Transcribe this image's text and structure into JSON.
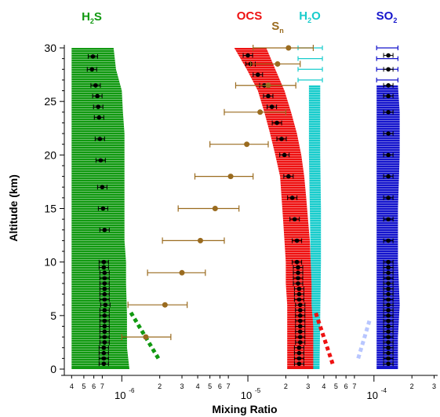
{
  "chart_data": {
    "type": "scatter",
    "title": "",
    "xlabel": "Mixing Ratio",
    "ylabel": "Altitude (km)",
    "x_scale": "log",
    "xlim": [
      3.5e-07,
      0.00032
    ],
    "ylim": [
      0,
      30
    ],
    "y_ticks": [
      0,
      5,
      10,
      15,
      20,
      25,
      30
    ],
    "x_major_ticks": [
      {
        "value": 1e-06,
        "label": "10",
        "exp": "-6"
      },
      {
        "value": 1e-05,
        "label": "10",
        "exp": "-5"
      },
      {
        "value": 0.0001,
        "label": "10",
        "exp": "-4"
      }
    ],
    "x_minor_ticks": [
      {
        "value": 4e-07,
        "label": "4"
      },
      {
        "value": 5e-07,
        "label": "5"
      },
      {
        "value": 6e-07,
        "label": "6"
      },
      {
        "value": 7e-07,
        "label": "7"
      },
      {
        "value": 2e-06,
        "label": "2"
      },
      {
        "value": 3e-06,
        "label": "3"
      },
      {
        "value": 4e-06,
        "label": "4"
      },
      {
        "value": 5e-06,
        "label": "5"
      },
      {
        "value": 6e-06,
        "label": "6"
      },
      {
        "value": 7e-06,
        "label": "7"
      },
      {
        "value": 2e-05,
        "label": "2"
      },
      {
        "value": 3e-05,
        "label": "3"
      },
      {
        "value": 4e-05,
        "label": "4"
      },
      {
        "value": 5e-05,
        "label": "5"
      },
      {
        "value": 6e-05,
        "label": "6"
      },
      {
        "value": 7e-05,
        "label": "7"
      },
      {
        "value": 0.0002,
        "label": "2"
      },
      {
        "value": 0.0003,
        "label": "3"
      }
    ],
    "series": [
      {
        "name": "H",
        "name_sub": "2",
        "name_tail": "S",
        "color": "#119911",
        "band": [
          [
            0,
            4e-07,
            1.15e-06
          ],
          [
            2,
            4e-07,
            1.1e-06
          ],
          [
            5,
            4e-07,
            1.1e-06
          ],
          [
            8,
            4e-07,
            1.08e-06
          ],
          [
            10,
            4e-07,
            1.08e-06
          ],
          [
            12,
            4e-07,
            1.05e-06
          ],
          [
            15,
            4e-07,
            1.05e-06
          ],
          [
            18,
            4e-07,
            1.05e-06
          ],
          [
            20,
            4e-07,
            1.05e-06
          ],
          [
            22,
            4e-07,
            1.05e-06
          ],
          [
            24,
            4e-07,
            1.02e-06
          ],
          [
            26,
            4e-07,
            1e-06
          ],
          [
            28,
            4e-07,
            9e-07
          ],
          [
            30,
            4e-07,
            8.6e-07
          ]
        ],
        "points": [
          [
            0.5,
            7.2e-07
          ],
          [
            1,
            7.2e-07
          ],
          [
            1.5,
            7.2e-07
          ],
          [
            2,
            7.2e-07
          ],
          [
            2.5,
            7.3e-07
          ],
          [
            3,
            7.3e-07
          ],
          [
            3.5,
            7.3e-07
          ],
          [
            4,
            7.3e-07
          ],
          [
            4.5,
            7.3e-07
          ],
          [
            5,
            7.3e-07
          ],
          [
            5.5,
            7.3e-07
          ],
          [
            6,
            7.4e-07
          ],
          [
            6.5,
            7.3e-07
          ],
          [
            7,
            7.3e-07
          ],
          [
            7.5,
            7.3e-07
          ],
          [
            8,
            7.3e-07
          ],
          [
            8.5,
            7.3e-07
          ],
          [
            9,
            7.3e-07
          ],
          [
            9.5,
            7.2e-07
          ],
          [
            10,
            7.2e-07
          ],
          [
            13,
            7.3e-07
          ],
          [
            15,
            7.1e-07
          ],
          [
            17,
            7e-07
          ],
          [
            19.5,
            6.8e-07
          ],
          [
            21.5,
            6.7e-07
          ],
          [
            23.5,
            6.6e-07
          ],
          [
            24.5,
            6.5e-07
          ],
          [
            25.5,
            6.4e-07
          ],
          [
            26.5,
            6.2e-07
          ],
          [
            28,
            5.8e-07
          ],
          [
            29.2,
            5.9e-07
          ]
        ],
        "extrap": [
          [
            1,
            1.95e-06
          ],
          [
            5.5,
            1.15e-06
          ]
        ]
      },
      {
        "name": "OCS",
        "name_sub": "",
        "name_tail": "",
        "color": "#ee1111",
        "band": [
          [
            0,
            2.05e-05,
            3.3e-05
          ],
          [
            4,
            2.05e-05,
            3.3e-05
          ],
          [
            6,
            2.05e-05,
            3.2e-05
          ],
          [
            8,
            2e-05,
            3.2e-05
          ],
          [
            10,
            2e-05,
            3.15e-05
          ],
          [
            12,
            1.95e-05,
            3.1e-05
          ],
          [
            14,
            1.9e-05,
            3e-05
          ],
          [
            16,
            1.85e-05,
            2.9e-05
          ],
          [
            18,
            1.8e-05,
            2.8e-05
          ],
          [
            20,
            1.65e-05,
            2.65e-05
          ],
          [
            22,
            1.5e-05,
            2.45e-05
          ],
          [
            24,
            1.35e-05,
            2.2e-05
          ],
          [
            26,
            1.2e-05,
            1.95e-05
          ],
          [
            28,
            9.8e-06,
            1.65e-05
          ],
          [
            30,
            7.8e-06,
            1.4e-05
          ]
        ],
        "points": [
          [
            0.5,
            2.55e-05
          ],
          [
            1,
            2.55e-05
          ],
          [
            1.5,
            2.55e-05
          ],
          [
            2,
            2.55e-05
          ],
          [
            2.5,
            2.6e-05
          ],
          [
            3,
            2.6e-05
          ],
          [
            3.5,
            2.6e-05
          ],
          [
            4,
            2.6e-05
          ],
          [
            4.5,
            2.6e-05
          ],
          [
            5,
            2.6e-05
          ],
          [
            5.5,
            2.6e-05
          ],
          [
            6,
            2.6e-05
          ],
          [
            6.5,
            2.55e-05
          ],
          [
            7,
            2.55e-05
          ],
          [
            7.5,
            2.55e-05
          ],
          [
            8,
            2.5e-05
          ],
          [
            8.5,
            2.5e-05
          ],
          [
            9,
            2.5e-05
          ],
          [
            9.5,
            2.5e-05
          ],
          [
            10,
            2.45e-05
          ],
          [
            12,
            2.45e-05
          ],
          [
            14,
            2.35e-05
          ],
          [
            16,
            2.25e-05
          ],
          [
            18,
            2.1e-05
          ],
          [
            20,
            1.95e-05
          ],
          [
            21.5,
            1.85e-05
          ],
          [
            23,
            1.7e-05
          ],
          [
            24.5,
            1.55e-05
          ],
          [
            25.5,
            1.45e-05
          ],
          [
            26.5,
            1.35e-05
          ],
          [
            27.5,
            1.2e-05
          ],
          [
            28.5,
            1.05e-05
          ],
          [
            29.3,
            1e-05
          ]
        ],
        "extrap": [
          [
            0.5,
            4.7e-05
          ],
          [
            5.5,
            3.4e-05
          ]
        ]
      },
      {
        "name": "H",
        "name_sub": "2",
        "name_tail": "O",
        "color": "#19cccc",
        "band": [
          [
            0,
            3.2e-05,
            3.7e-05
          ],
          [
            5,
            3.2e-05,
            3.75e-05
          ],
          [
            10,
            3.15e-05,
            3.8e-05
          ],
          [
            15,
            3.1e-05,
            3.8e-05
          ],
          [
            20,
            3.05e-05,
            3.75e-05
          ],
          [
            25,
            3.05e-05,
            3.75e-05
          ],
          [
            26.5,
            3.05e-05,
            3.75e-05
          ]
        ],
        "errorbars": [
          [
            27,
            2.5e-05,
            3.9e-05
          ],
          [
            28,
            2.5e-05,
            3.9e-05
          ],
          [
            29,
            2.5e-05,
            3.9e-05
          ],
          [
            30,
            2.5e-05,
            3.9e-05
          ]
        ],
        "points": []
      },
      {
        "name": "SO",
        "name_sub": "2",
        "name_tail": "",
        "color": "#1515cc",
        "band": [
          [
            0,
            0.000105,
            0.000155
          ],
          [
            3,
            0.000105,
            0.000155
          ],
          [
            6,
            0.000105,
            0.00016
          ],
          [
            10,
            0.000105,
            0.000155
          ],
          [
            15,
            0.000105,
            0.000155
          ],
          [
            20,
            0.000105,
            0.00016
          ],
          [
            24,
            0.000105,
            0.00016
          ],
          [
            26.5,
            0.000105,
            0.000155
          ]
        ],
        "errorbars": [
          [
            27,
            0.000105,
            0.000155
          ],
          [
            28,
            0.000105,
            0.000155
          ],
          [
            29,
            0.000105,
            0.000155
          ],
          [
            30,
            0.000105,
            0.000155
          ]
        ],
        "points": [
          [
            0.5,
            0.00013
          ],
          [
            1,
            0.00013
          ],
          [
            1.5,
            0.00013
          ],
          [
            2,
            0.00013
          ],
          [
            2.5,
            0.00013
          ],
          [
            3,
            0.00013
          ],
          [
            3.5,
            0.00013
          ],
          [
            4,
            0.00013
          ],
          [
            4.5,
            0.00013
          ],
          [
            5,
            0.00013
          ],
          [
            5.5,
            0.00013
          ],
          [
            6,
            0.00013
          ],
          [
            6.5,
            0.00013
          ],
          [
            7,
            0.00013
          ],
          [
            7.5,
            0.00013
          ],
          [
            8,
            0.00013
          ],
          [
            8.5,
            0.00013
          ],
          [
            9,
            0.00013
          ],
          [
            9.5,
            0.00013
          ],
          [
            10,
            0.00013
          ],
          [
            12,
            0.00013
          ],
          [
            14,
            0.00013
          ],
          [
            16,
            0.00013
          ],
          [
            18,
            0.00013
          ],
          [
            20,
            0.00013
          ],
          [
            22,
            0.00013
          ],
          [
            24,
            0.00013
          ],
          [
            25.5,
            0.00013
          ],
          [
            26.5,
            0.00013
          ],
          [
            28,
            0.00013
          ],
          [
            29.3,
            0.00013
          ]
        ],
        "extrap": [
          [
            1,
            7.5e-05
          ],
          [
            4.5,
            9.2e-05
          ]
        ]
      },
      {
        "name": "S",
        "name_sub": "n",
        "name_tail": "",
        "color": "#9a6b1f",
        "band": [],
        "points_err": [
          [
            3,
            1.55e-06,
            1e-06,
            2.45e-06
          ],
          [
            6,
            2.2e-06,
            1.12e-06,
            3.3e-06
          ],
          [
            9,
            3e-06,
            1.6e-06,
            4.6e-06
          ],
          [
            12,
            4.2e-06,
            2.1e-06,
            6.5e-06
          ],
          [
            15,
            5.5e-06,
            2.8e-06,
            8.5e-06
          ],
          [
            18,
            7.3e-06,
            3.8e-06,
            1.1e-05
          ],
          [
            21,
            9.8e-06,
            5e-06,
            1.45e-05
          ],
          [
            24,
            1.25e-05,
            6.5e-06,
            2e-05
          ],
          [
            26.5,
            1.45e-05,
            8e-06,
            2.4e-05
          ],
          [
            28.5,
            1.72e-05,
            1.05e-05,
            2.6e-05
          ],
          [
            30,
            2.1e-05,
            1.1e-05,
            3.3e-05
          ]
        ]
      }
    ],
    "legend_placement": "top, above each series"
  }
}
